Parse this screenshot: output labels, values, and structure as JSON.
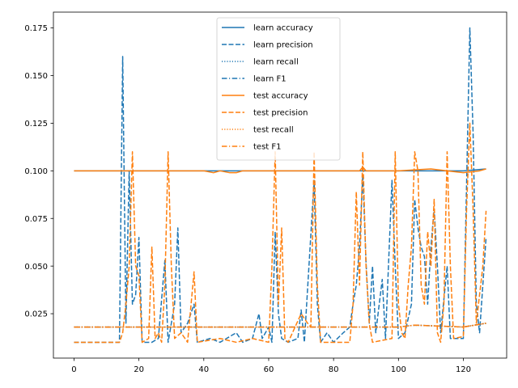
{
  "chart_data": {
    "type": "line",
    "title": "",
    "xlabel": "",
    "ylabel": "",
    "xlim": [
      -6.35,
      133.35
    ],
    "ylim": [
      0.0017,
      0.1833
    ],
    "xticks": [
      0,
      20,
      40,
      60,
      80,
      100,
      120
    ],
    "yticks": [
      0.025,
      0.05,
      0.075,
      0.1,
      0.125,
      0.15,
      0.175
    ],
    "ytick_labels": [
      "0.025",
      "0.050",
      "0.075",
      "0.100",
      "0.125",
      "0.150",
      "0.175"
    ],
    "grid": false,
    "legend_position": "upper-center",
    "colors": {
      "learn": "#1f77b4",
      "test": "#ff7f0e"
    },
    "series": [
      {
        "name": "learn accuracy",
        "color": "#1f77b4",
        "style": "solid",
        "values": [
          [
            0,
            0.1
          ],
          [
            20,
            0.1
          ],
          [
            40,
            0.1
          ],
          [
            60,
            0.1
          ],
          [
            80,
            0.1
          ],
          [
            100,
            0.1
          ],
          [
            120,
            0.1
          ],
          [
            127,
            0.101
          ]
        ]
      },
      {
        "name": "learn precision",
        "color": "#1f77b4",
        "style": "dashed",
        "values": [
          [
            0,
            0.01
          ],
          [
            14,
            0.01
          ],
          [
            15,
            0.16
          ],
          [
            16,
            0.02
          ],
          [
            17,
            0.1
          ],
          [
            18,
            0.03
          ],
          [
            19,
            0.035
          ],
          [
            20,
            0.065
          ],
          [
            21,
            0.01
          ],
          [
            24,
            0.01
          ],
          [
            26,
            0.012
          ],
          [
            28,
            0.053
          ],
          [
            29,
            0.01
          ],
          [
            31,
            0.03
          ],
          [
            32,
            0.07
          ],
          [
            33,
            0.015
          ],
          [
            35,
            0.02
          ],
          [
            37,
            0.03
          ],
          [
            38,
            0.01
          ],
          [
            42,
            0.012
          ],
          [
            45,
            0.01
          ],
          [
            50,
            0.015
          ],
          [
            52,
            0.01
          ],
          [
            55,
            0.012
          ],
          [
            57,
            0.025
          ],
          [
            58,
            0.012
          ],
          [
            60,
            0.018
          ],
          [
            61,
            0.01
          ],
          [
            62,
            0.068
          ],
          [
            63,
            0.025
          ],
          [
            64,
            0.012
          ],
          [
            66,
            0.01
          ],
          [
            69,
            0.012
          ],
          [
            70,
            0.027
          ],
          [
            71,
            0.01
          ],
          [
            74,
            0.095
          ],
          [
            75,
            0.03
          ],
          [
            76,
            0.01
          ],
          [
            78,
            0.015
          ],
          [
            80,
            0.01
          ],
          [
            83,
            0.015
          ],
          [
            85,
            0.018
          ],
          [
            86,
            0.03
          ],
          [
            87,
            0.04
          ],
          [
            88,
            0.06
          ],
          [
            89,
            0.098
          ],
          [
            90,
            0.052
          ],
          [
            91,
            0.02
          ],
          [
            92,
            0.05
          ],
          [
            93,
            0.015
          ],
          [
            95,
            0.043
          ],
          [
            96,
            0.012
          ],
          [
            98,
            0.095
          ],
          [
            99,
            0.05
          ],
          [
            100,
            0.012
          ],
          [
            102,
            0.015
          ],
          [
            104,
            0.03
          ],
          [
            105,
            0.085
          ],
          [
            106,
            0.07
          ],
          [
            107,
            0.06
          ],
          [
            108,
            0.055
          ],
          [
            109,
            0.03
          ],
          [
            110,
            0.06
          ],
          [
            111,
            0.08
          ],
          [
            112,
            0.05
          ],
          [
            113,
            0.015
          ],
          [
            115,
            0.05
          ],
          [
            116,
            0.012
          ],
          [
            120,
            0.012
          ],
          [
            122,
            0.175
          ],
          [
            123,
            0.12
          ],
          [
            124,
            0.03
          ],
          [
            125,
            0.015
          ],
          [
            127,
            0.065
          ]
        ]
      },
      {
        "name": "learn recall",
        "color": "#1f77b4",
        "style": "dotted",
        "values": [
          [
            0,
            0.018
          ],
          [
            20,
            0.018
          ],
          [
            40,
            0.018
          ],
          [
            60,
            0.018
          ],
          [
            80,
            0.018
          ],
          [
            100,
            0.018
          ],
          [
            105,
            0.019
          ],
          [
            120,
            0.018
          ],
          [
            127,
            0.02
          ]
        ]
      },
      {
        "name": "learn F1",
        "color": "#1f77b4",
        "style": "dashdot",
        "values": [
          [
            0,
            0.018
          ],
          [
            20,
            0.018
          ],
          [
            40,
            0.018
          ],
          [
            60,
            0.018
          ],
          [
            80,
            0.018
          ],
          [
            100,
            0.018
          ],
          [
            105,
            0.019
          ],
          [
            120,
            0.018
          ],
          [
            127,
            0.02
          ]
        ]
      },
      {
        "name": "test accuracy",
        "color": "#ff7f0e",
        "style": "solid",
        "values": [
          [
            0,
            0.1
          ],
          [
            20,
            0.1
          ],
          [
            40,
            0.1
          ],
          [
            43,
            0.099
          ],
          [
            45,
            0.1
          ],
          [
            48,
            0.099
          ],
          [
            50,
            0.099
          ],
          [
            52,
            0.1
          ],
          [
            60,
            0.1
          ],
          [
            80,
            0.1
          ],
          [
            88,
            0.1
          ],
          [
            89,
            0.102
          ],
          [
            90,
            0.1
          ],
          [
            100,
            0.1
          ],
          [
            110,
            0.101
          ],
          [
            115,
            0.1
          ],
          [
            120,
            0.099
          ],
          [
            125,
            0.1
          ],
          [
            127,
            0.101
          ]
        ]
      },
      {
        "name": "test precision",
        "color": "#ff7f0e",
        "style": "dashed",
        "values": [
          [
            0,
            0.01
          ],
          [
            14,
            0.01
          ],
          [
            15,
            0.015
          ],
          [
            16,
            0.03
          ],
          [
            17,
            0.05
          ],
          [
            18,
            0.11
          ],
          [
            19,
            0.05
          ],
          [
            20,
            0.045
          ],
          [
            21,
            0.01
          ],
          [
            23,
            0.012
          ],
          [
            24,
            0.06
          ],
          [
            25,
            0.012
          ],
          [
            26,
            0.015
          ],
          [
            27,
            0.01
          ],
          [
            28,
            0.04
          ],
          [
            29,
            0.11
          ],
          [
            30,
            0.05
          ],
          [
            31,
            0.012
          ],
          [
            33,
            0.015
          ],
          [
            35,
            0.01
          ],
          [
            37,
            0.047
          ],
          [
            38,
            0.01
          ],
          [
            45,
            0.012
          ],
          [
            50,
            0.01
          ],
          [
            55,
            0.012
          ],
          [
            60,
            0.01
          ],
          [
            61,
            0.05
          ],
          [
            62,
            0.11
          ],
          [
            63,
            0.03
          ],
          [
            64,
            0.07
          ],
          [
            65,
            0.012
          ],
          [
            66,
            0.01
          ],
          [
            70,
            0.025
          ],
          [
            72,
            0.02
          ],
          [
            73,
            0.018
          ],
          [
            74,
            0.11
          ],
          [
            75,
            0.04
          ],
          [
            76,
            0.01
          ],
          [
            85,
            0.01
          ],
          [
            86,
            0.03
          ],
          [
            87,
            0.089
          ],
          [
            88,
            0.04
          ],
          [
            89,
            0.11
          ],
          [
            90,
            0.05
          ],
          [
            91,
            0.02
          ],
          [
            92,
            0.01
          ],
          [
            98,
            0.012
          ],
          [
            99,
            0.11
          ],
          [
            100,
            0.03
          ],
          [
            101,
            0.015
          ],
          [
            102,
            0.012
          ],
          [
            103,
            0.04
          ],
          [
            104,
            0.06
          ],
          [
            105,
            0.11
          ],
          [
            106,
            0.1
          ],
          [
            107,
            0.04
          ],
          [
            108,
            0.03
          ],
          [
            109,
            0.068
          ],
          [
            110,
            0.05
          ],
          [
            111,
            0.085
          ],
          [
            112,
            0.015
          ],
          [
            113,
            0.01
          ],
          [
            114,
            0.03
          ],
          [
            115,
            0.11
          ],
          [
            116,
            0.05
          ],
          [
            117,
            0.012
          ],
          [
            120,
            0.013
          ],
          [
            121,
            0.08
          ],
          [
            122,
            0.125
          ],
          [
            123,
            0.08
          ],
          [
            124,
            0.02
          ],
          [
            125,
            0.035
          ],
          [
            126,
            0.05
          ],
          [
            127,
            0.079
          ]
        ]
      },
      {
        "name": "test recall",
        "color": "#ff7f0e",
        "style": "dotted",
        "values": [
          [
            0,
            0.018
          ],
          [
            20,
            0.018
          ],
          [
            40,
            0.018
          ],
          [
            60,
            0.018
          ],
          [
            80,
            0.018
          ],
          [
            100,
            0.018
          ],
          [
            105,
            0.019
          ],
          [
            120,
            0.018
          ],
          [
            127,
            0.02
          ]
        ]
      },
      {
        "name": "test F1",
        "color": "#ff7f0e",
        "style": "dashdot",
        "values": [
          [
            0,
            0.018
          ],
          [
            20,
            0.018
          ],
          [
            40,
            0.018
          ],
          [
            60,
            0.018
          ],
          [
            80,
            0.018
          ],
          [
            100,
            0.018
          ],
          [
            105,
            0.019
          ],
          [
            120,
            0.018
          ],
          [
            127,
            0.02
          ]
        ]
      }
    ]
  }
}
